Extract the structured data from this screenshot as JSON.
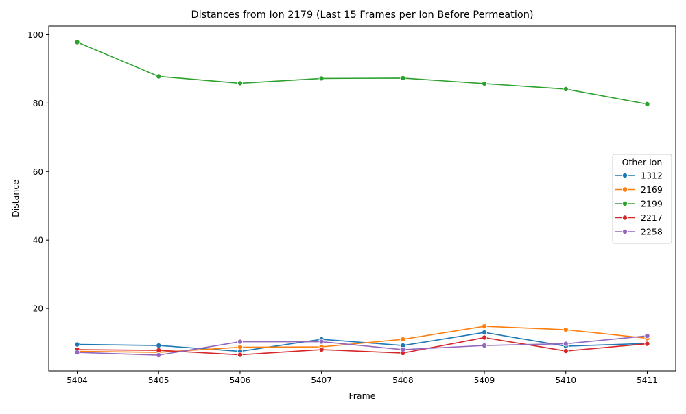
{
  "chart_data": {
    "type": "line",
    "title": "Distances from Ion 2179 (Last 15 Frames per Ion Before Permeation)",
    "xlabel": "Frame",
    "ylabel": "Distance",
    "x": [
      5404,
      5405,
      5406,
      5407,
      5408,
      5409,
      5410,
      5411
    ],
    "x_ticks": [
      "5404",
      "5405",
      "5406",
      "5407",
      "5408",
      "5409",
      "5410",
      "5411"
    ],
    "y_ticks": [
      "20",
      "40",
      "60",
      "80",
      "100"
    ],
    "y_tick_values": [
      20,
      40,
      60,
      80,
      100
    ],
    "xlim": [
      5403.65,
      5411.35
    ],
    "ylim": [
      1.8,
      102.5
    ],
    "grid": false,
    "legend": {
      "title": "Other Ion",
      "placement": "center-right"
    },
    "series": [
      {
        "name": "1312",
        "color": "#1f77b4",
        "values": [
          9.5,
          9.2,
          7.5,
          11.0,
          9.2,
          13.0,
          9.0,
          9.8
        ]
      },
      {
        "name": "2169",
        "color": "#ff7f0e",
        "values": [
          7.5,
          7.2,
          8.7,
          8.8,
          11.0,
          14.8,
          13.8,
          11.3
        ]
      },
      {
        "name": "2199",
        "color": "#2ca02c",
        "values": [
          97.8,
          87.8,
          85.8,
          87.2,
          87.3,
          85.7,
          84.1,
          79.7
        ]
      },
      {
        "name": "2217",
        "color": "#d62728",
        "values": [
          8.0,
          7.8,
          6.5,
          8.0,
          7.0,
          11.5,
          7.6,
          9.7
        ]
      },
      {
        "name": "2258",
        "color": "#9467bd",
        "values": [
          7.2,
          6.4,
          10.3,
          10.3,
          8.0,
          9.2,
          9.7,
          12.0
        ]
      }
    ]
  }
}
